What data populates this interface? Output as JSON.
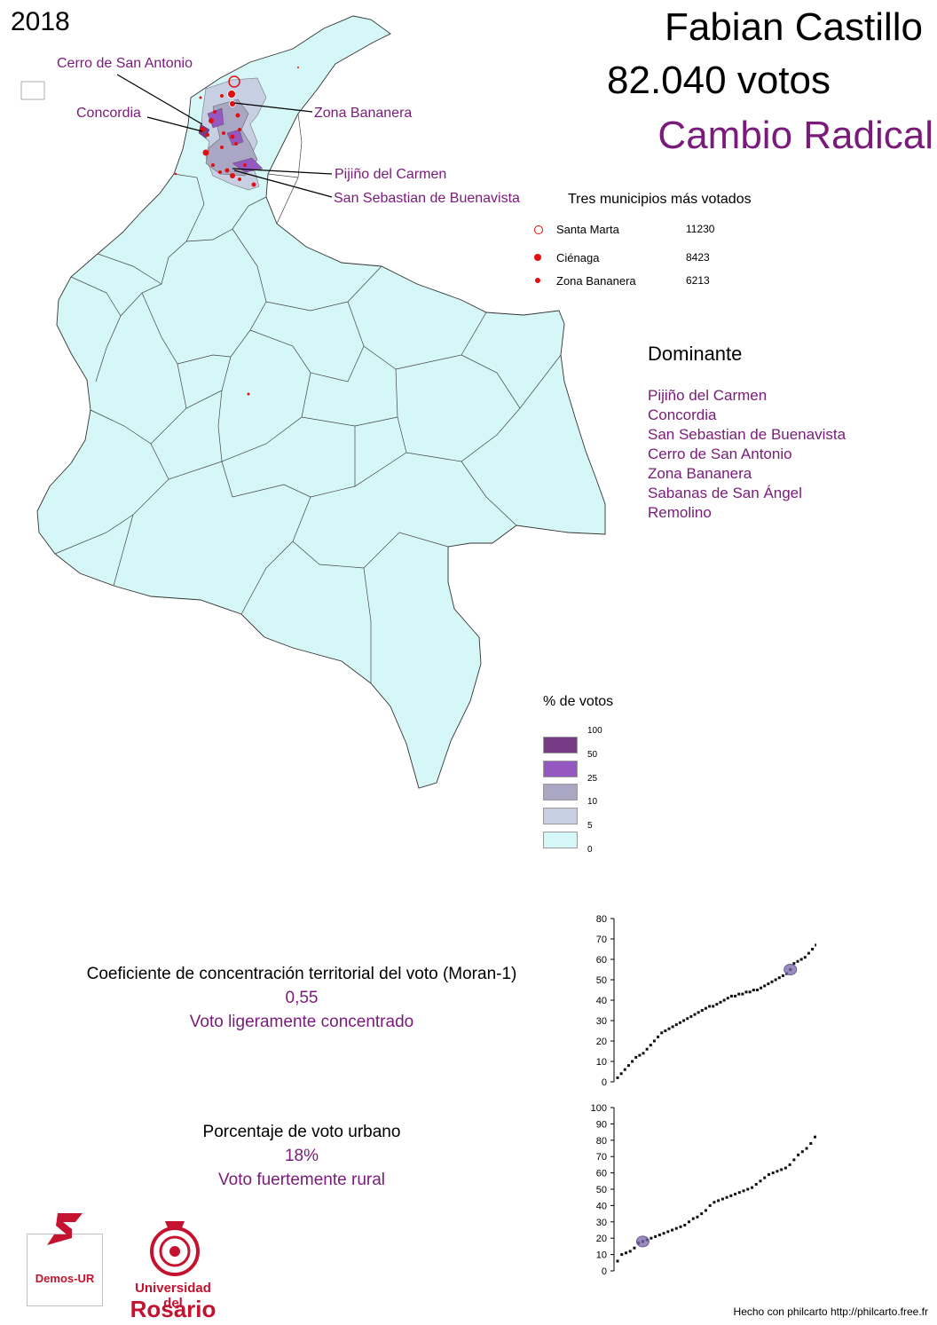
{
  "header": {
    "year": "2018",
    "candidate": "Fabian Castillo",
    "votes": "82.040 votos",
    "party": "Cambio Radical"
  },
  "map_labels": [
    "Cerro de San Antonio",
    "Concordia",
    "Zona Bananera",
    "Pijiño del Carmen",
    "San Sebastian de Buenavista"
  ],
  "top_municipalities": {
    "title": "Tres municipios más votados",
    "rows": [
      {
        "name": "Santa Marta",
        "value": "11230",
        "marker": "open-circle"
      },
      {
        "name": "Ciénaga",
        "value": "8423",
        "marker": "filled-circle"
      },
      {
        "name": "Zona Bananera",
        "value": "6213",
        "marker": "small-filled-circle"
      }
    ]
  },
  "dominant": {
    "title": "Dominante",
    "items": [
      "Pijiño del Carmen",
      "Concordia",
      "San Sebastian de Buenavista",
      "Cerro de San Antonio",
      "Zona Bananera",
      "Sabanas de San Ángel",
      "Remolino"
    ]
  },
  "legend": {
    "title": "% de votos",
    "breaks": [
      "100",
      "50",
      "25",
      "10",
      "5",
      "0"
    ],
    "colors": [
      "#773b86",
      "#9558c0",
      "#aaa7c5",
      "#c7cfe3",
      "#d6f7f7"
    ]
  },
  "moran": {
    "title": "Coeficiente de concentración territorial del voto (Moran-1)",
    "value": "0,55",
    "label": "Voto ligeramente concentrado"
  },
  "urban": {
    "title": "Porcentaje de voto urbano",
    "value": "18%",
    "label": "Voto fuertemente rural"
  },
  "chart_data": [
    {
      "type": "scatter",
      "description_source": "Moran chart",
      "ylim": [
        0,
        80
      ],
      "yticks": [
        "0",
        "10",
        "20",
        "30",
        "40",
        "50",
        "60",
        "70",
        "80"
      ],
      "highlight_y": 55,
      "y": [
        2,
        4,
        6,
        8,
        10,
        12,
        13,
        14,
        16,
        18,
        20,
        22,
        24,
        25,
        26,
        27,
        28,
        29,
        30,
        31,
        32,
        33,
        34,
        35,
        36,
        37,
        37,
        38,
        39,
        40,
        41,
        42,
        42,
        43,
        43,
        44,
        44,
        45,
        45,
        46,
        47,
        48,
        49,
        50,
        51,
        52,
        53,
        55,
        58,
        59,
        60,
        61,
        63,
        65,
        67,
        68,
        76
      ]
    },
    {
      "type": "scatter",
      "description_source": "Urban vote chart",
      "ylim": [
        0,
        100
      ],
      "yticks": [
        "0",
        "10",
        "20",
        "30",
        "40",
        "50",
        "60",
        "70",
        "80",
        "90",
        "100"
      ],
      "highlight_y": 18,
      "y": [
        6,
        10,
        11,
        12,
        14,
        17,
        18,
        19,
        20,
        21,
        22,
        23,
        24,
        25,
        26,
        27,
        28,
        30,
        32,
        33,
        35,
        37,
        40,
        42,
        43,
        44,
        45,
        46,
        47,
        48,
        49,
        50,
        51,
        53,
        55,
        57,
        59,
        60,
        61,
        62,
        63,
        65,
        68,
        71,
        73,
        75,
        78,
        82,
        84,
        90
      ]
    }
  ],
  "footer": {
    "credit": "Hecho con philcarto http://philcarto.free.fr"
  },
  "logos": {
    "demos": "Demos-UR",
    "university_line1": "Universidad del",
    "university_line2": "Rosario"
  }
}
